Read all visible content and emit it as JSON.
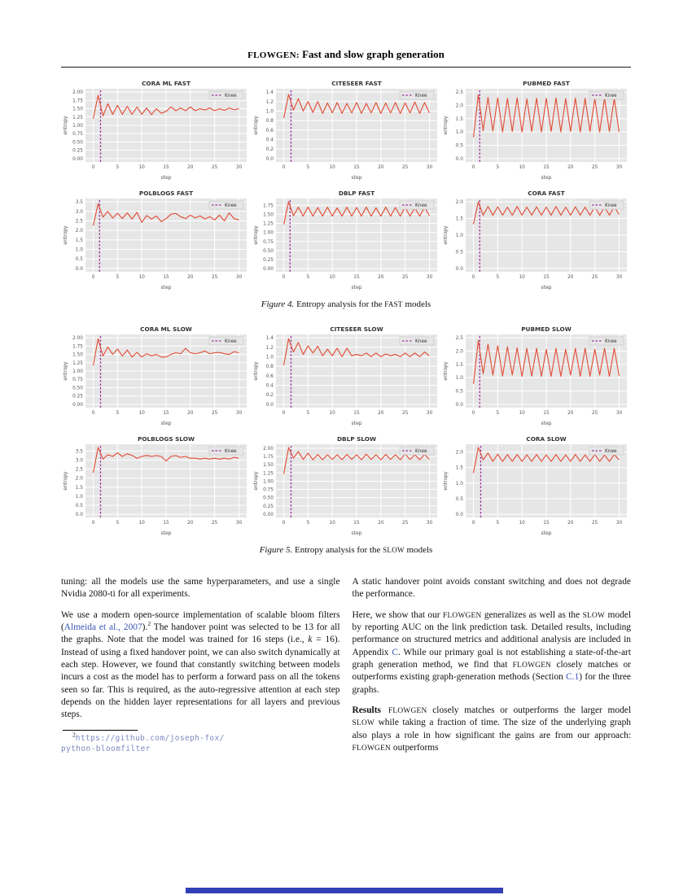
{
  "header": {
    "title_sc": "FLOWGEN:",
    "title_rest": " Fast and slow graph generation"
  },
  "colors": {
    "line": "#e24a33",
    "knee": "#993399",
    "plot_bg": "#e6e6e6",
    "grid": "#ffffff",
    "tick": "#555555",
    "title": "#333333",
    "legend_bg": "#e6e6e6",
    "legend_border": "#cccccc",
    "link": "#3a56b4",
    "mono_link": "#7d88c0"
  },
  "figures": [
    {
      "caption": {
        "label": "Figure 4.",
        "pre": " Entropy analysis for the ",
        "sc": "FAST",
        "post": " models"
      }
    },
    {
      "caption": {
        "label": "Figure 5.",
        "pre": " Entropy analysis for the ",
        "sc": "SLOW",
        "post": " models"
      }
    }
  ],
  "chart_data": [
    {
      "type": "line",
      "figure": 4,
      "title": "CORA ML FAST",
      "xlabel": "step",
      "ylabel": "entropy",
      "legend": "Knee",
      "legend_position": "upper right",
      "grid": true,
      "knee_x": 1.5,
      "xticks": [
        0,
        5,
        10,
        15,
        20,
        25,
        30
      ],
      "x_range": [
        0,
        30
      ],
      "ytick_labels": [
        "0.00",
        "0.25",
        "0.50",
        "0.75",
        "1.00",
        "1.25",
        "1.50",
        "1.75",
        "2.00"
      ],
      "y": [
        1.2,
        1.9,
        1.28,
        1.65,
        1.33,
        1.6,
        1.33,
        1.57,
        1.33,
        1.55,
        1.33,
        1.52,
        1.32,
        1.5,
        1.36,
        1.42,
        1.55,
        1.44,
        1.52,
        1.44,
        1.55,
        1.44,
        1.5,
        1.46,
        1.52,
        1.44,
        1.5,
        1.45,
        1.52,
        1.47,
        1.5
      ]
    },
    {
      "type": "line",
      "figure": 4,
      "title": "CITESEER FAST",
      "xlabel": "step",
      "ylabel": "entropy",
      "legend": "Knee",
      "legend_position": "upper right",
      "grid": true,
      "knee_x": 1.5,
      "xticks": [
        0,
        5,
        10,
        15,
        20,
        25,
        30
      ],
      "x_range": [
        0,
        30
      ],
      "ytick_labels": [
        "0.0",
        "0.2",
        "0.4",
        "0.6",
        "0.8",
        "1.0",
        "1.2",
        "1.4"
      ],
      "y": [
        0.85,
        1.35,
        1.02,
        1.26,
        1.0,
        1.2,
        0.97,
        1.2,
        0.95,
        1.17,
        0.96,
        1.18,
        0.95,
        1.16,
        0.96,
        1.18,
        0.95,
        1.16,
        0.96,
        1.18,
        0.95,
        1.17,
        0.96,
        1.18,
        0.95,
        1.17,
        0.96,
        1.19,
        0.95,
        1.18,
        0.96
      ]
    },
    {
      "type": "line",
      "figure": 4,
      "title": "PUBMED FAST",
      "xlabel": "step",
      "ylabel": "entropy",
      "legend": "Knee",
      "legend_position": "upper right",
      "grid": true,
      "knee_x": 1.3,
      "xticks": [
        0,
        5,
        10,
        15,
        20,
        25,
        30
      ],
      "x_range": [
        0,
        30
      ],
      "ytick_labels": [
        "0.0",
        "0.5",
        "1.0",
        "1.5",
        "2.0",
        "2.5"
      ],
      "y": [
        0.8,
        2.4,
        1.05,
        2.3,
        1.03,
        2.28,
        1.0,
        2.26,
        1.02,
        2.28,
        1.0,
        2.25,
        1.02,
        2.27,
        1.0,
        2.26,
        1.02,
        2.28,
        1.0,
        2.25,
        1.02,
        2.27,
        1.0,
        2.26,
        1.02,
        2.25,
        1.0,
        2.28,
        1.02,
        2.26,
        1.0
      ]
    },
    {
      "type": "line",
      "figure": 4,
      "title": "POLBLOGS FAST",
      "xlabel": "step",
      "ylabel": "entropy",
      "legend": "Knee",
      "legend_position": "upper right",
      "grid": true,
      "knee_x": 1.3,
      "xticks": [
        0,
        5,
        10,
        15,
        20,
        25,
        30
      ],
      "x_range": [
        0,
        30
      ],
      "ytick_labels": [
        "0.0",
        "0.5",
        "1.0",
        "1.5",
        "2.0",
        "2.5",
        "3.0",
        "3.5"
      ],
      "y": [
        2.25,
        3.4,
        2.7,
        3.0,
        2.65,
        2.9,
        2.62,
        2.92,
        2.6,
        2.95,
        2.42,
        2.78,
        2.6,
        2.76,
        2.46,
        2.62,
        2.85,
        2.9,
        2.72,
        2.62,
        2.8,
        2.66,
        2.76,
        2.6,
        2.72,
        2.55,
        2.8,
        2.5,
        2.92,
        2.62,
        2.55
      ]
    },
    {
      "type": "line",
      "figure": 4,
      "title": "DBLP FAST",
      "xlabel": "step",
      "ylabel": "entropy",
      "legend": "Knee",
      "legend_position": "upper right",
      "grid": true,
      "knee_x": 1.3,
      "xticks": [
        0,
        5,
        10,
        15,
        20,
        25,
        30
      ],
      "x_range": [
        0,
        30
      ],
      "ytick_labels": [
        "0.00",
        "0.25",
        "0.50",
        "0.75",
        "1.00",
        "1.25",
        "1.50",
        "1.75"
      ],
      "y": [
        1.22,
        1.85,
        1.46,
        1.7,
        1.45,
        1.7,
        1.45,
        1.69,
        1.45,
        1.7,
        1.45,
        1.68,
        1.45,
        1.7,
        1.45,
        1.69,
        1.45,
        1.7,
        1.45,
        1.68,
        1.45,
        1.7,
        1.45,
        1.69,
        1.45,
        1.7,
        1.45,
        1.68,
        1.45,
        1.7,
        1.46
      ]
    },
    {
      "type": "line",
      "figure": 4,
      "title": "CORA FAST",
      "xlabel": "step",
      "ylabel": "entropy",
      "legend": "Knee",
      "legend_position": "upper right",
      "grid": true,
      "knee_x": 1.3,
      "xticks": [
        0,
        5,
        10,
        15,
        20,
        25,
        30
      ],
      "x_range": [
        0,
        30
      ],
      "ytick_labels": [
        "0.0",
        "0.5",
        "1.0",
        "1.5",
        "2.0"
      ],
      "y": [
        1.33,
        2.0,
        1.6,
        1.86,
        1.6,
        1.85,
        1.6,
        1.84,
        1.6,
        1.86,
        1.6,
        1.84,
        1.6,
        1.85,
        1.6,
        1.84,
        1.6,
        1.86,
        1.6,
        1.84,
        1.6,
        1.85,
        1.6,
        1.84,
        1.6,
        1.85,
        1.6,
        1.84,
        1.6,
        1.85,
        1.62
      ]
    },
    {
      "type": "line",
      "figure": 5,
      "title": "CORA ML SLOW",
      "xlabel": "step",
      "ylabel": "entropy",
      "legend": "Knee",
      "legend_position": "upper right",
      "grid": true,
      "knee_x": 1.5,
      "xticks": [
        0,
        5,
        10,
        15,
        20,
        25,
        30
      ],
      "x_range": [
        0,
        30
      ],
      "ytick_labels": [
        "0.00",
        "0.25",
        "0.50",
        "0.75",
        "1.00",
        "1.25",
        "1.50",
        "1.75",
        "2.00"
      ],
      "y": [
        1.17,
        1.97,
        1.45,
        1.72,
        1.5,
        1.66,
        1.45,
        1.63,
        1.42,
        1.56,
        1.42,
        1.52,
        1.46,
        1.5,
        1.42,
        1.42,
        1.5,
        1.55,
        1.52,
        1.68,
        1.55,
        1.52,
        1.55,
        1.6,
        1.52,
        1.55,
        1.56,
        1.52,
        1.5,
        1.58,
        1.55
      ]
    },
    {
      "type": "line",
      "figure": 5,
      "title": "CITESEER SLOW",
      "xlabel": "step",
      "ylabel": "entropy",
      "legend": "Knee",
      "legend_position": "upper right",
      "grid": true,
      "knee_x": 1.5,
      "xticks": [
        0,
        5,
        10,
        15,
        20,
        25,
        30
      ],
      "x_range": [
        0,
        30
      ],
      "ytick_labels": [
        "0.0",
        "0.2",
        "0.4",
        "0.6",
        "0.8",
        "1.0",
        "1.2",
        "1.4"
      ],
      "y": [
        0.82,
        1.38,
        1.1,
        1.3,
        1.05,
        1.23,
        1.08,
        1.22,
        1.02,
        1.16,
        1.02,
        1.18,
        1.0,
        1.18,
        1.02,
        1.05,
        1.02,
        1.08,
        1.0,
        1.08,
        1.0,
        1.06,
        1.02,
        1.05,
        1.0,
        1.08,
        1.0,
        1.08,
        1.0,
        1.1,
        1.02
      ]
    },
    {
      "type": "line",
      "figure": 5,
      "title": "PUBMED SLOW",
      "xlabel": "step",
      "ylabel": "entropy",
      "legend": "Knee",
      "legend_position": "upper right",
      "grid": true,
      "knee_x": 1.3,
      "xticks": [
        0,
        5,
        10,
        15,
        20,
        25,
        30
      ],
      "x_range": [
        0,
        30
      ],
      "ytick_labels": [
        "0.0",
        "0.5",
        "1.0",
        "1.5",
        "2.0",
        "2.5"
      ],
      "y": [
        0.77,
        2.4,
        1.15,
        2.26,
        1.1,
        2.2,
        1.06,
        2.16,
        1.1,
        2.12,
        1.05,
        2.1,
        1.06,
        2.1,
        1.05,
        2.06,
        1.05,
        2.1,
        1.05,
        2.06,
        1.1,
        2.1,
        1.05,
        2.1,
        1.05,
        2.06,
        1.1,
        2.1,
        1.05,
        2.1,
        1.07
      ]
    },
    {
      "type": "line",
      "figure": 5,
      "title": "POLBLOGS SLOW",
      "xlabel": "step",
      "ylabel": "entropy",
      "legend": "Knee",
      "legend_position": "upper right",
      "grid": true,
      "knee_x": 1.5,
      "xticks": [
        0,
        5,
        10,
        15,
        20,
        25,
        30
      ],
      "x_range": [
        0,
        30
      ],
      "ytick_labels": [
        "0.0",
        "0.5",
        "1.0",
        "1.5",
        "2.0",
        "2.5",
        "3.0",
        "3.5"
      ],
      "y": [
        2.3,
        3.7,
        3.05,
        3.3,
        3.2,
        3.4,
        3.2,
        3.35,
        3.26,
        3.1,
        3.2,
        3.26,
        3.2,
        3.25,
        3.2,
        2.95,
        3.2,
        3.25,
        3.15,
        3.2,
        3.1,
        3.1,
        3.05,
        3.1,
        3.05,
        3.1,
        3.05,
        3.1,
        3.05,
        3.15,
        3.1
      ]
    },
    {
      "type": "line",
      "figure": 5,
      "title": "DBLP SLOW",
      "xlabel": "step",
      "ylabel": "entropy",
      "legend": "Knee",
      "legend_position": "upper right",
      "grid": true,
      "knee_x": 1.5,
      "xticks": [
        0,
        5,
        10,
        15,
        20,
        25,
        30
      ],
      "x_range": [
        0,
        30
      ],
      "ytick_labels": [
        "0.00",
        "0.25",
        "0.50",
        "0.75",
        "1.00",
        "1.25",
        "1.50",
        "1.75",
        "2.00"
      ],
      "y": [
        1.22,
        2.02,
        1.7,
        1.9,
        1.66,
        1.85,
        1.65,
        1.81,
        1.65,
        1.8,
        1.66,
        1.8,
        1.65,
        1.81,
        1.66,
        1.8,
        1.65,
        1.82,
        1.66,
        1.8,
        1.65,
        1.81,
        1.66,
        1.8,
        1.65,
        1.82,
        1.66,
        1.8,
        1.65,
        1.81,
        1.66
      ]
    },
    {
      "type": "line",
      "figure": 5,
      "title": "CORA SLOW",
      "xlabel": "step",
      "ylabel": "entropy",
      "legend": "Knee",
      "legend_position": "upper right",
      "grid": true,
      "knee_x": 1.5,
      "xticks": [
        0,
        5,
        10,
        15,
        20,
        25,
        30
      ],
      "x_range": [
        0,
        30
      ],
      "ytick_labels": [
        "0.0",
        "0.5",
        "1.0",
        "1.5",
        "2.0"
      ],
      "y": [
        1.33,
        2.15,
        1.75,
        1.97,
        1.7,
        1.93,
        1.7,
        1.92,
        1.7,
        1.92,
        1.7,
        1.91,
        1.7,
        1.92,
        1.7,
        1.91,
        1.7,
        1.92,
        1.7,
        1.91,
        1.7,
        1.92,
        1.7,
        1.91,
        1.7,
        1.92,
        1.7,
        1.91,
        1.7,
        1.92,
        1.75
      ]
    }
  ],
  "columns": {
    "left": {
      "p1": "tuning: all the models use the same hyperparameters, and use a single Nvidia 2080-ti for all experiments.",
      "p2": {
        "s0": "We use a modern open-source implementation of scalable bloom filters (",
        "link": "Almeida et al., 2007",
        "s1": ").",
        "sup": "2",
        "s2": " The handover point was selected to be 13 for all the graphs. Note that the model was trained for 16 steps (i.e., ",
        "it": "k",
        "s3": " = 16). Instead of using a fixed handover point, we can also switch dynamically at each step. However, we found that constantly switching between models incurs a cost as the model has to perform a forward pass on all the tokens seen so far. This is required, as the auto-regressive attention at each step depends on the hidden layer representations for all layers and previous steps."
      },
      "footnote": {
        "sup": "2",
        "line1": "https://github.com/joseph-fox/",
        "line2": "python-bloomfilter"
      }
    },
    "right": {
      "p1": "A static handover point avoids constant switching and does not degrade the performance.",
      "p2": {
        "s0": "Here, we show that our ",
        "sc0": "FLOWGEN",
        "s1": " generalizes as well as the ",
        "sc1": "SLOW",
        "s2": " model by reporting AUC on the link prediction task. Detailed results, including performance on structured metrics and additional analysis are included in Appendix ",
        "link0": "C",
        "s3": ". While our primary goal is not establishing a state-of-the-art graph generation method, we find that ",
        "sc2": "FLOWGEN",
        "s4": " closely matches or outperforms existing graph-generation methods (Section ",
        "link1": "C.1",
        "s5": ") for the three graphs."
      },
      "p3": {
        "b": "Results",
        "sc0": "FLOWGEN",
        "s0": " closely matches or outperforms the larger model ",
        "sc1": "SLOW",
        "s1": " while taking a fraction of time. The size of the underlying graph also plays a role in how significant the gains are from our approach: ",
        "sc2": "FLOWGEN",
        "s2": " outperforms"
      }
    }
  }
}
